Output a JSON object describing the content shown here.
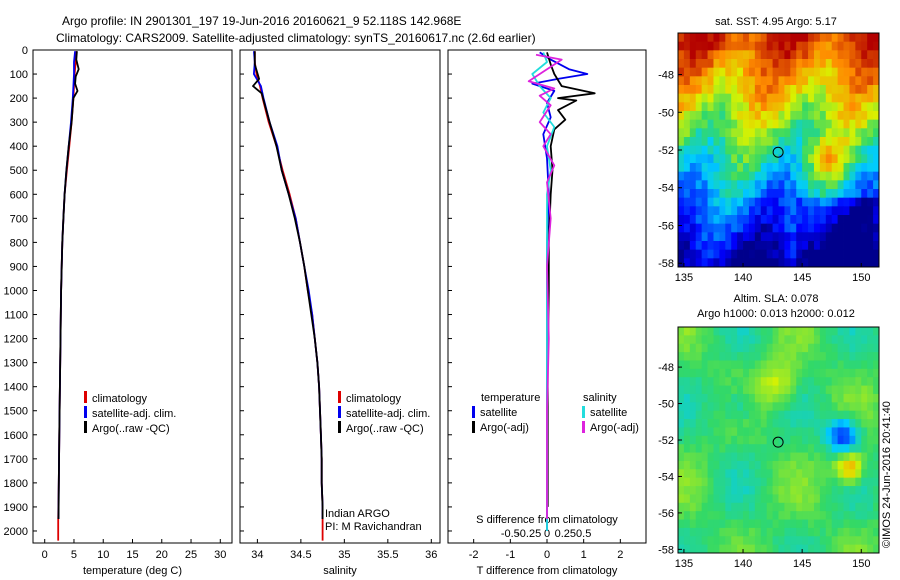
{
  "header": {
    "line1": "Argo profile: IN 2901301_197 19-Jun-2016 20160621_9 52.118S 142.968E",
    "line2": "Climatology: CARS2009. Satellite-adjusted climatology: synTS_20160617.nc (2.6d earlier)"
  },
  "colors": {
    "climatology": "#dd0000",
    "satellite": "#0000ee",
    "argo": "#000000",
    "sat_salinity": "#22dddd",
    "argo_salinity": "#dd22dd"
  },
  "depth_axis": {
    "min": 0,
    "max": 2050,
    "ticks": [
      0,
      100,
      200,
      300,
      400,
      500,
      600,
      700,
      800,
      900,
      1000,
      1100,
      1200,
      1300,
      1400,
      1500,
      1600,
      1700,
      1800,
      1900,
      2000
    ]
  },
  "chart_data": [
    {
      "type": "line",
      "xlabel": "temperature (deg C)",
      "xlim": [
        -2,
        32
      ],
      "xticks": [
        0,
        5,
        10,
        15,
        20,
        25,
        30
      ],
      "ylim": [
        0,
        2050
      ],
      "legend": {
        "placement": "lower-center",
        "entries": [
          "climatology",
          "satellite-adj. clim.",
          "Argo(..raw -QC)"
        ]
      },
      "series": [
        {
          "name": "climatology",
          "color": "#dd0000",
          "points": [
            [
              5.4,
              5
            ],
            [
              5.3,
              50
            ],
            [
              5.1,
              100
            ],
            [
              5.0,
              150
            ],
            [
              4.9,
              200
            ],
            [
              4.6,
              300
            ],
            [
              4.2,
              400
            ],
            [
              3.8,
              500
            ],
            [
              3.4,
              600
            ],
            [
              3.2,
              700
            ],
            [
              3.0,
              800
            ],
            [
              2.9,
              900
            ],
            [
              2.8,
              1000
            ],
            [
              2.7,
              1200
            ],
            [
              2.6,
              1400
            ],
            [
              2.5,
              1600
            ],
            [
              2.4,
              1800
            ],
            [
              2.3,
              1950
            ],
            [
              2.3,
              2040
            ]
          ]
        },
        {
          "name": "satellite-adj. clim.",
          "color": "#0000ee",
          "points": [
            [
              5.2,
              5
            ],
            [
              5.0,
              50
            ],
            [
              5.0,
              100
            ],
            [
              4.9,
              150
            ],
            [
              4.8,
              200
            ],
            [
              4.5,
              300
            ],
            [
              4.1,
              400
            ],
            [
              3.7,
              500
            ],
            [
              3.4,
              600
            ],
            [
              3.2,
              700
            ],
            [
              3.0,
              800
            ],
            [
              2.9,
              900
            ],
            [
              2.8,
              1000
            ],
            [
              2.7,
              1200
            ],
            [
              2.6,
              1400
            ],
            [
              2.5,
              1600
            ],
            [
              2.4,
              1800
            ],
            [
              2.35,
              1950
            ]
          ]
        },
        {
          "name": "Argo(..raw -QC)",
          "color": "#000000",
          "points": [
            [
              5.5,
              5
            ],
            [
              5.4,
              40
            ],
            [
              5.8,
              80
            ],
            [
              5.3,
              110
            ],
            [
              5.2,
              140
            ],
            [
              5.6,
              170
            ],
            [
              4.9,
              200
            ],
            [
              4.6,
              300
            ],
            [
              4.1,
              400
            ],
            [
              3.7,
              500
            ],
            [
              3.4,
              600
            ],
            [
              3.2,
              700
            ],
            [
              3.0,
              800
            ],
            [
              2.9,
              900
            ],
            [
              2.8,
              1000
            ],
            [
              2.7,
              1200
            ],
            [
              2.6,
              1400
            ],
            [
              2.5,
              1600
            ],
            [
              2.4,
              1800
            ],
            [
              2.35,
              1950
            ]
          ]
        }
      ]
    },
    {
      "type": "line",
      "xlabel": "salinity",
      "xlim": [
        33.8,
        36.1
      ],
      "xticks": [
        34,
        34.5,
        35,
        35.5,
        36
      ],
      "xticklabels": [
        "34",
        "34.5",
        "35",
        "35.5",
        "36"
      ],
      "ylim": [
        0,
        2050
      ],
      "legend": {
        "placement": "lower-center",
        "entries": [
          "climatology",
          "satellite-adj. clim.",
          "Argo(..raw -QC)"
        ]
      },
      "annotations": [
        "Indian ARGO",
        "PI: M Ravichandran"
      ],
      "series": [
        {
          "name": "climatology",
          "color": "#dd0000",
          "points": [
            [
              33.97,
              5
            ],
            [
              33.97,
              50
            ],
            [
              33.99,
              100
            ],
            [
              34.03,
              150
            ],
            [
              34.06,
              200
            ],
            [
              34.13,
              300
            ],
            [
              34.22,
              400
            ],
            [
              34.29,
              500
            ],
            [
              34.37,
              600
            ],
            [
              34.44,
              700
            ],
            [
              34.49,
              800
            ],
            [
              34.54,
              900
            ],
            [
              34.58,
              1000
            ],
            [
              34.63,
              1100
            ],
            [
              34.66,
              1200
            ],
            [
              34.69,
              1300
            ],
            [
              34.71,
              1400
            ],
            [
              34.72,
              1500
            ],
            [
              34.73,
              1600
            ],
            [
              34.74,
              1700
            ],
            [
              34.74,
              1800
            ],
            [
              34.75,
              1900
            ],
            [
              34.75,
              2040
            ]
          ]
        },
        {
          "name": "satellite-adj. clim.",
          "color": "#0000ee",
          "points": [
            [
              33.96,
              5
            ],
            [
              33.97,
              50
            ],
            [
              33.96,
              100
            ],
            [
              34.04,
              150
            ],
            [
              34.07,
              200
            ],
            [
              34.14,
              300
            ],
            [
              34.23,
              400
            ],
            [
              34.28,
              500
            ],
            [
              34.36,
              600
            ],
            [
              34.44,
              700
            ],
            [
              34.49,
              800
            ],
            [
              34.54,
              900
            ],
            [
              34.59,
              1000
            ],
            [
              34.63,
              1100
            ],
            [
              34.66,
              1200
            ],
            [
              34.69,
              1300
            ],
            [
              34.71,
              1400
            ],
            [
              34.72,
              1500
            ],
            [
              34.73,
              1600
            ],
            [
              34.74,
              1700
            ],
            [
              34.74,
              1800
            ],
            [
              34.75,
              1900
            ],
            [
              34.75,
              1950
            ]
          ]
        },
        {
          "name": "Argo(..raw -QC)",
          "color": "#000000",
          "points": [
            [
              33.97,
              5
            ],
            [
              33.97,
              60
            ],
            [
              34.02,
              120
            ],
            [
              33.95,
              150
            ],
            [
              34.05,
              180
            ],
            [
              34.08,
              220
            ],
            [
              34.14,
              300
            ],
            [
              34.22,
              400
            ],
            [
              34.28,
              500
            ],
            [
              34.36,
              600
            ],
            [
              34.43,
              700
            ],
            [
              34.49,
              800
            ],
            [
              34.54,
              900
            ],
            [
              34.58,
              1000
            ],
            [
              34.62,
              1100
            ],
            [
              34.66,
              1200
            ],
            [
              34.69,
              1300
            ],
            [
              34.71,
              1400
            ],
            [
              34.72,
              1500
            ],
            [
              34.73,
              1600
            ],
            [
              34.74,
              1700
            ],
            [
              34.74,
              1800
            ],
            [
              34.75,
              1900
            ],
            [
              34.75,
              1950
            ]
          ]
        }
      ]
    },
    {
      "type": "line",
      "xlabel": "T difference from climatology",
      "xlabel_top": "S difference from climatology",
      "xlim": [
        -2.7,
        2.7
      ],
      "xticks": [
        -2,
        -1,
        0,
        1,
        2
      ],
      "xticklabels": [
        "-2",
        "-1",
        "0",
        "1",
        "2"
      ],
      "top_ticks": [
        -1,
        -0.5,
        0,
        0.5,
        1
      ],
      "top_ticklabels": [
        "-0.5",
        "-0.25",
        "0",
        "0.25",
        "0.5"
      ],
      "ylim": [
        0,
        2050
      ],
      "legend": {
        "placement": "lower-center",
        "groups": [
          {
            "title": "temperature",
            "entries": [
              "satellite",
              "Argo(-adj)"
            ]
          },
          {
            "title": "salinity",
            "entries": [
              "satellite",
              "Argo(-adj)"
            ]
          }
        ]
      },
      "series": [
        {
          "name": "temperature satellite",
          "color": "#0000ee",
          "points": [
            [
              -0.2,
              10
            ],
            [
              0.1,
              40
            ],
            [
              0.6,
              80
            ],
            [
              1.1,
              100
            ],
            [
              0.3,
              120
            ],
            [
              -0.4,
              140
            ],
            [
              0.2,
              170
            ],
            [
              0.0,
              220
            ],
            [
              0.1,
              280
            ],
            [
              -0.1,
              350
            ],
            [
              0.0,
              450
            ],
            [
              0.05,
              600
            ],
            [
              0.0,
              800
            ],
            [
              0.0,
              1200
            ],
            [
              0.0,
              1600
            ],
            [
              0.0,
              2000
            ]
          ]
        },
        {
          "name": "temperature Argo(-adj)",
          "color": "#000000",
          "points": [
            [
              0.0,
              10
            ],
            [
              0.1,
              60
            ],
            [
              0.2,
              100
            ],
            [
              0.4,
              150
            ],
            [
              1.3,
              180
            ],
            [
              0.3,
              200
            ],
            [
              0.8,
              210
            ],
            [
              0.3,
              250
            ],
            [
              0.5,
              290
            ],
            [
              0.2,
              330
            ],
            [
              0.1,
              400
            ],
            [
              0.15,
              500
            ],
            [
              0.1,
              600
            ],
            [
              0.05,
              800
            ],
            [
              0.05,
              1000
            ],
            [
              0.02,
              1300
            ],
            [
              0.02,
              1600
            ],
            [
              0.02,
              1900
            ]
          ]
        },
        {
          "name": "salinity satellite",
          "color": "#22dddd",
          "points": [
            [
              -0.1,
              10
            ],
            [
              0.0,
              50
            ],
            [
              -0.4,
              100
            ],
            [
              -0.2,
              150
            ],
            [
              0.1,
              200
            ],
            [
              -0.1,
              260
            ],
            [
              0.2,
              320
            ],
            [
              0.0,
              400
            ],
            [
              0.1,
              500
            ],
            [
              0.0,
              600
            ],
            [
              0.0,
              800
            ],
            [
              0.0,
              1200
            ],
            [
              0.0,
              1600
            ],
            [
              0.0,
              2000
            ]
          ]
        },
        {
          "name": "salinity Argo(-adj)",
          "color": "#dd22dd",
          "points": [
            [
              -0.3,
              20
            ],
            [
              0.4,
              40
            ],
            [
              -0.5,
              130
            ],
            [
              0.2,
              160
            ],
            [
              -0.2,
              190
            ],
            [
              0.1,
              230
            ],
            [
              -0.2,
              300
            ],
            [
              0.1,
              350
            ],
            [
              -0.1,
              400
            ],
            [
              0.2,
              480
            ],
            [
              0.0,
              550
            ],
            [
              0.1,
              700
            ],
            [
              0.0,
              900
            ],
            [
              0.05,
              1200
            ],
            [
              0.0,
              1500
            ],
            [
              0.0,
              1800
            ],
            [
              0.0,
              1950
            ]
          ]
        }
      ]
    },
    {
      "type": "heatmap",
      "title": "sat. SST: 4.95  Argo: 5.17",
      "xlim": [
        134.5,
        151.5
      ],
      "ylim": [
        -58.2,
        -45.8
      ],
      "xticks": [
        135,
        140,
        145,
        150
      ],
      "yticks": [
        -48,
        -50,
        -52,
        -54,
        -56,
        -58
      ],
      "marker": {
        "lon": 142.968,
        "lat": -52.118
      }
    },
    {
      "type": "heatmap",
      "title_line1": "Altim. SLA: 0.078",
      "title_line2": "Argo h1000: 0.013 h2000: 0.012",
      "xlim": [
        134.5,
        151.5
      ],
      "ylim": [
        -58.2,
        -45.8
      ],
      "xticks": [
        135,
        140,
        145,
        150
      ],
      "yticks": [
        -48,
        -50,
        -52,
        -54,
        -56,
        -58
      ],
      "marker": {
        "lon": 142.968,
        "lat": -52.118
      }
    }
  ],
  "credit": "©IMOS 24-Jun-2016 20:41:40"
}
